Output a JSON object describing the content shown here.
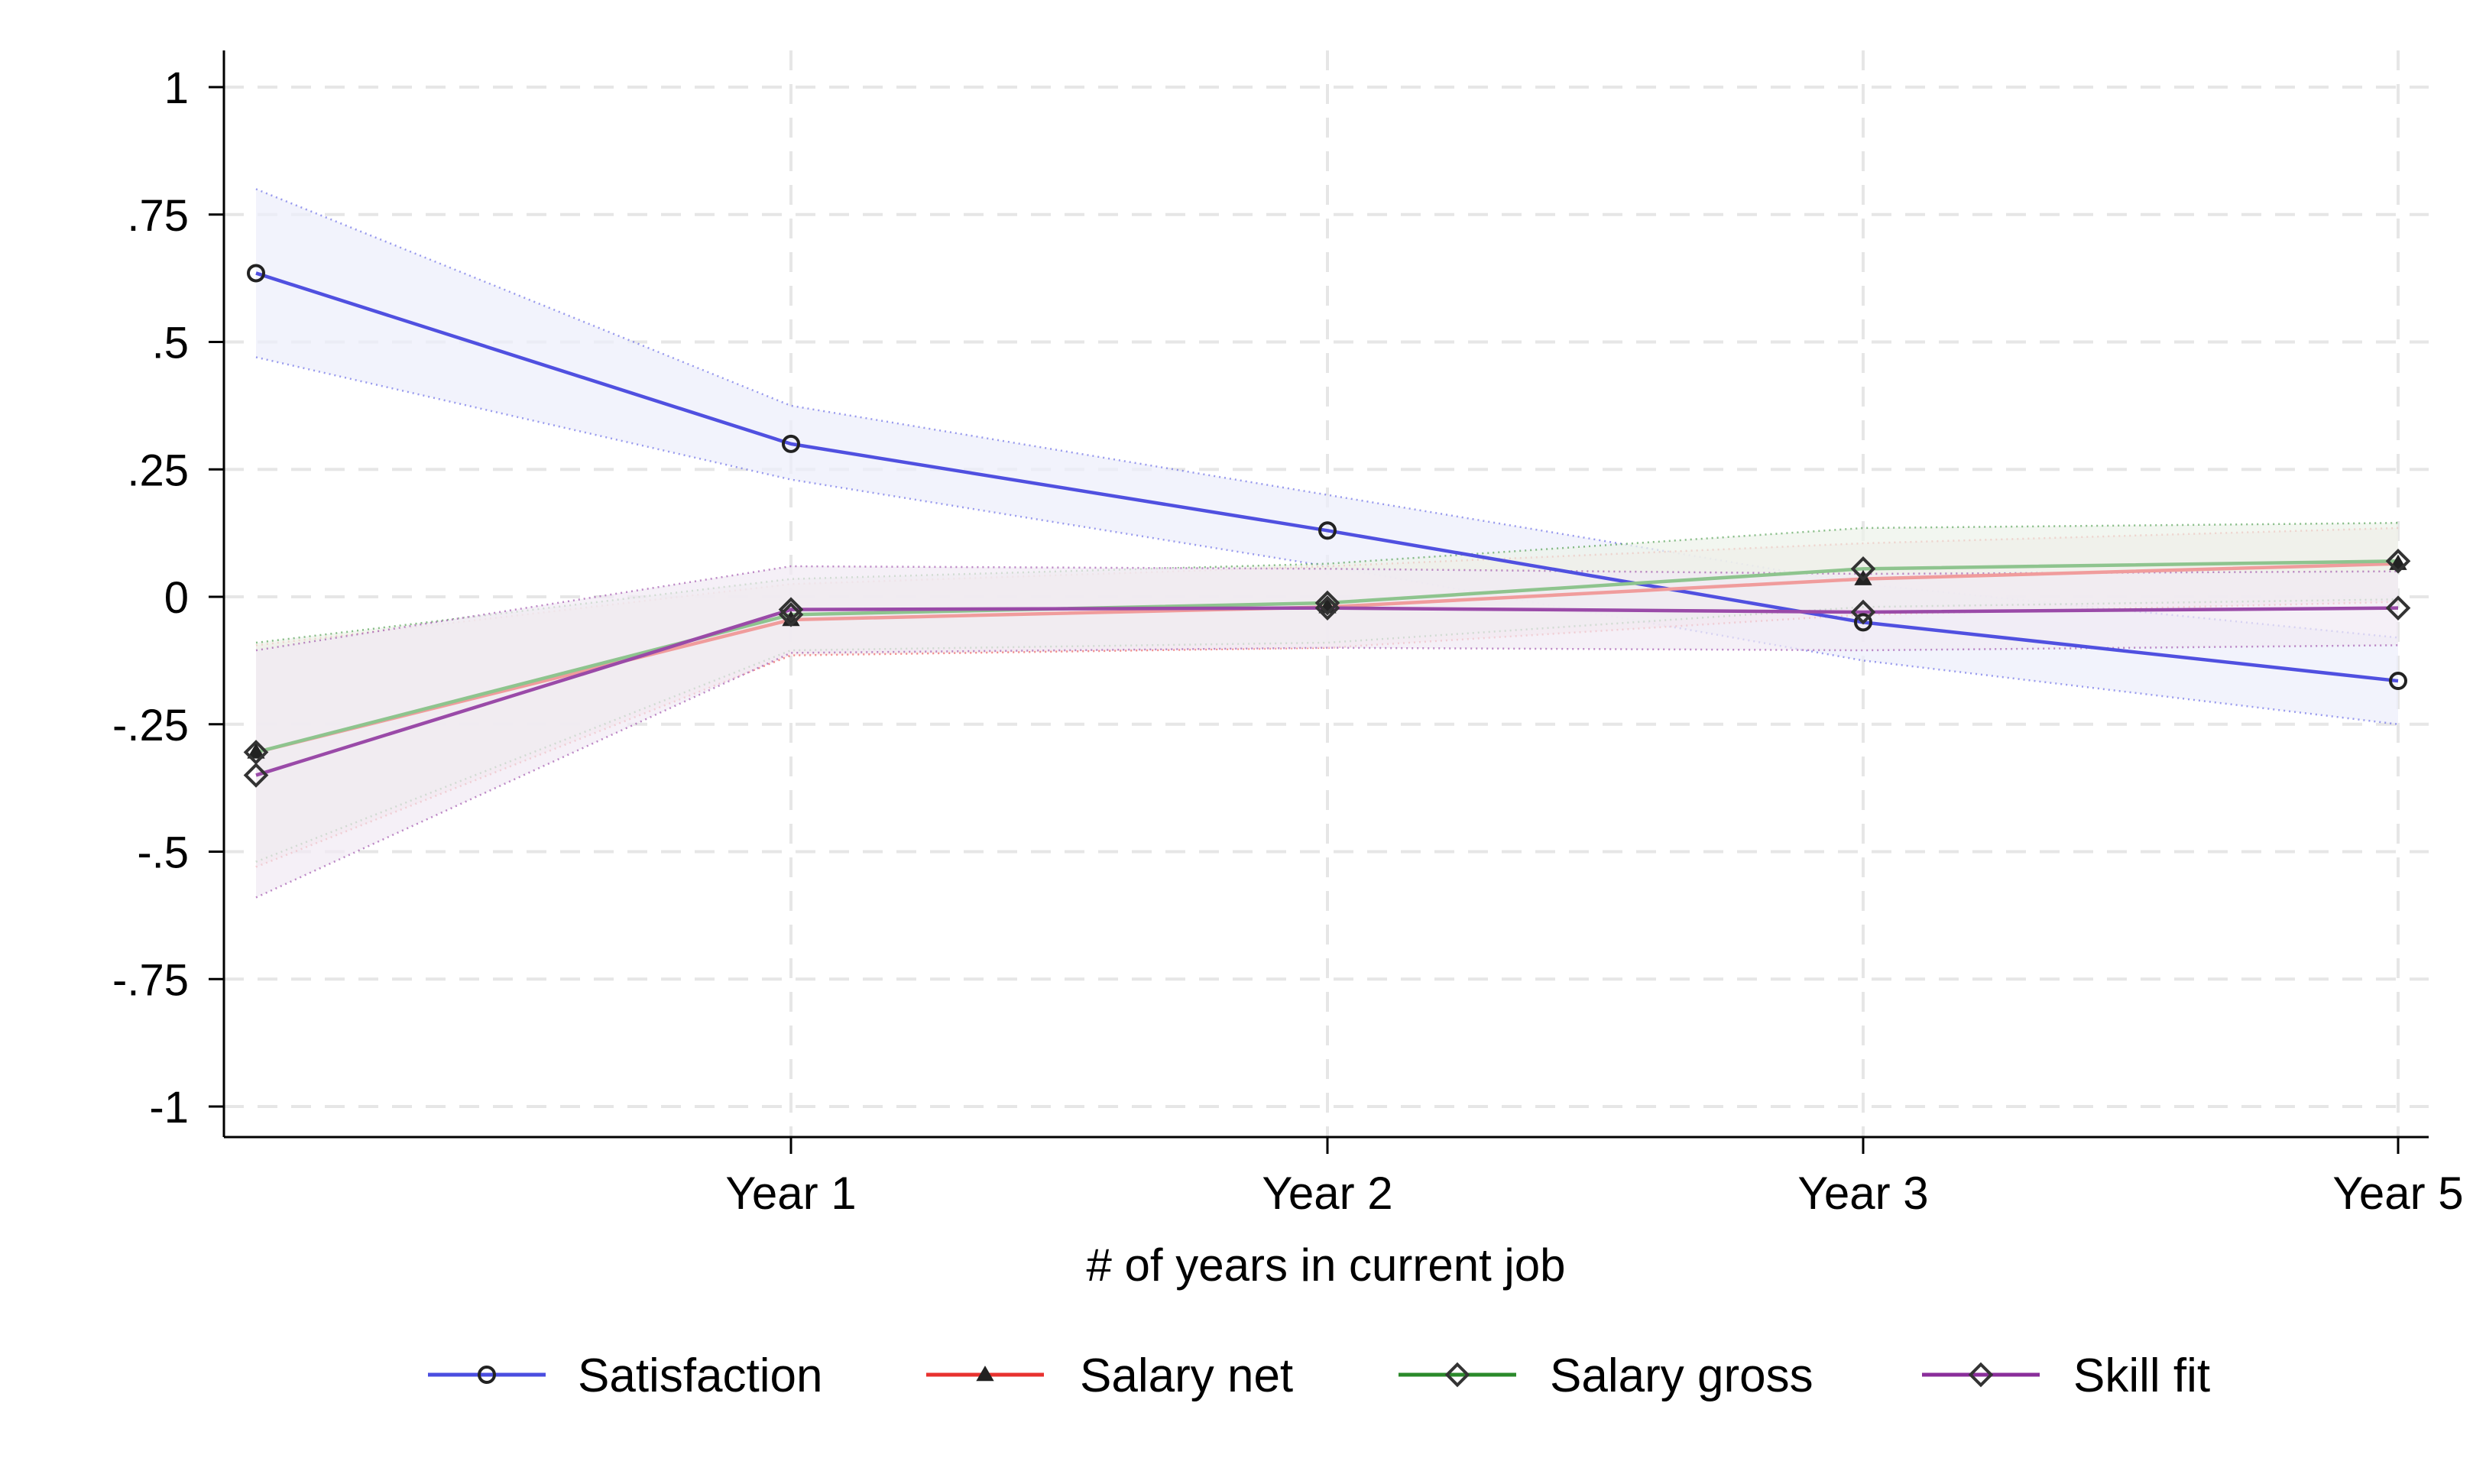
{
  "chart_data": {
    "type": "line",
    "title": "",
    "xlabel": "# of years in current job",
    "ylabel": "",
    "x": [
      "",
      "Year 1",
      "Year 2",
      "Year 3",
      "Year 5"
    ],
    "x_tick_labels": [
      "Year 1",
      "Year 2",
      "Year 3",
      "Year 5"
    ],
    "y_ticks": [
      1,
      0.75,
      0.5,
      0.25,
      0,
      -0.25,
      -0.5,
      -0.75,
      -1
    ],
    "y_tick_labels": [
      "1",
      ".75",
      ".5",
      ".25",
      "0",
      "-.25",
      "-.5",
      "-.75",
      "-1"
    ],
    "ylim": [
      -1.05,
      1.05
    ],
    "grid": true,
    "legend_position": "bottom",
    "series": [
      {
        "name": "Satisfaction",
        "color": "#4a4de0",
        "marker": "circle",
        "values": [
          0.635,
          0.3,
          0.13,
          -0.05,
          -0.165
        ],
        "ci_lower": [
          0.47,
          0.23,
          0.06,
          -0.125,
          -0.25
        ],
        "ci_upper": [
          0.8,
          0.375,
          0.2,
          0.025,
          -0.08
        ]
      },
      {
        "name": "Salary net",
        "color": "#e8322f",
        "marker": "triangle",
        "values": [
          -0.305,
          -0.045,
          -0.02,
          0.035,
          0.065
        ],
        "ci_lower": [
          -0.53,
          -0.115,
          -0.1,
          -0.035,
          -0.01
        ],
        "ci_upper": [
          -0.095,
          0.025,
          0.06,
          0.105,
          0.135
        ]
      },
      {
        "name": "Salary gross",
        "color": "#2b8a2b",
        "marker": "diamond",
        "values": [
          -0.305,
          -0.035,
          -0.012,
          0.055,
          0.07
        ],
        "ci_lower": [
          -0.52,
          -0.105,
          -0.09,
          -0.02,
          -0.005
        ],
        "ci_upper": [
          -0.09,
          0.035,
          0.065,
          0.135,
          0.145
        ]
      },
      {
        "name": "Skill fit",
        "color": "#8a2e9a",
        "marker": "diamond",
        "values": [
          -0.35,
          -0.025,
          -0.022,
          -0.03,
          -0.022
        ],
        "ci_lower": [
          -0.59,
          -0.11,
          -0.1,
          -0.105,
          -0.095
        ],
        "ci_upper": [
          -0.105,
          0.06,
          0.055,
          0.045,
          0.05
        ]
      }
    ]
  }
}
